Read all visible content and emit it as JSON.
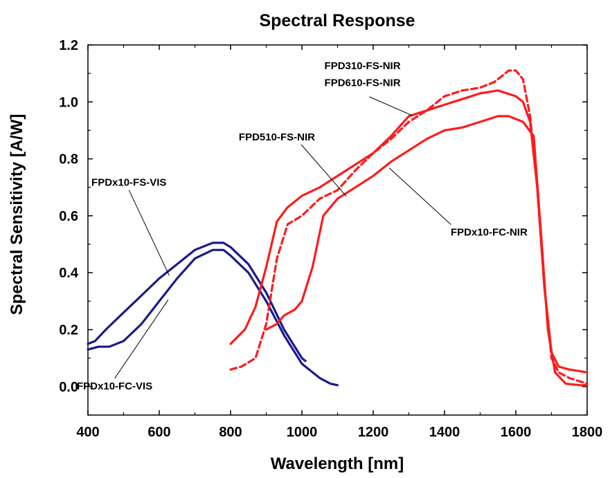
{
  "chart_data": {
    "type": "line",
    "title": "Spectral Response",
    "xlabel": "Wavelength [nm]",
    "ylabel": "Spectral Sensitivity [A/W]",
    "xlim": [
      400,
      1800
    ],
    "ylim": [
      -0.1,
      1.2
    ],
    "xticks": [
      400,
      600,
      800,
      1000,
      1200,
      1400,
      1600,
      1800
    ],
    "yticks": [
      0.0,
      0.2,
      0.4,
      0.6,
      0.8,
      1.0,
      1.2
    ],
    "xtick_labels": [
      "400",
      "600",
      "800",
      "1000",
      "1200",
      "1400",
      "1600",
      "1800"
    ],
    "ytick_labels": [
      "0.0",
      "0.2",
      "0.4",
      "0.6",
      "0.8",
      "1.0",
      "1.2"
    ],
    "grid": false,
    "colors": {
      "vis": "#1a1a8c",
      "nir": "#ff1a1a"
    },
    "series": [
      {
        "color": "vis",
        "dashed": false,
        "x": [
          400,
          430,
          460,
          500,
          550,
          600,
          650,
          700,
          750,
          780,
          800,
          850,
          900,
          950,
          1000,
          1050,
          1080,
          1100
        ],
        "y": [
          0.13,
          0.14,
          0.14,
          0.16,
          0.22,
          0.3,
          0.38,
          0.45,
          0.48,
          0.48,
          0.46,
          0.4,
          0.3,
          0.18,
          0.08,
          0.03,
          0.01,
          0.005
        ]
      },
      {
        "color": "vis",
        "dashed": false,
        "x": [
          400,
          420,
          450,
          500,
          550,
          600,
          650,
          700,
          750,
          780,
          800,
          850,
          900,
          950,
          1000,
          1010
        ],
        "y": [
          0.15,
          0.16,
          0.2,
          0.26,
          0.32,
          0.38,
          0.43,
          0.48,
          0.505,
          0.505,
          0.49,
          0.43,
          0.33,
          0.2,
          0.1,
          0.09
        ]
      },
      {
        "color": "nir",
        "dashed": false,
        "x": [
          800,
          840,
          870,
          900,
          930,
          960,
          1000,
          1050,
          1100,
          1150,
          1200,
          1250,
          1300,
          1350,
          1400,
          1450,
          1500,
          1550,
          1600,
          1620,
          1640,
          1660,
          1680,
          1700,
          1720,
          1750,
          1800
        ],
        "y": [
          0.15,
          0.2,
          0.28,
          0.42,
          0.58,
          0.63,
          0.67,
          0.7,
          0.74,
          0.78,
          0.82,
          0.88,
          0.95,
          0.97,
          0.99,
          1.01,
          1.03,
          1.04,
          1.02,
          1.0,
          0.93,
          0.7,
          0.35,
          0.12,
          0.07,
          0.06,
          0.05
        ]
      },
      {
        "color": "nir",
        "dashed": true,
        "x": [
          800,
          830,
          870,
          900,
          930,
          960,
          1000,
          1050,
          1100,
          1150,
          1200,
          1250,
          1300,
          1350,
          1400,
          1450,
          1500,
          1540,
          1560,
          1580,
          1600,
          1620,
          1640,
          1660,
          1680,
          1700,
          1720,
          1750,
          1800
        ],
        "y": [
          0.06,
          0.07,
          0.1,
          0.22,
          0.45,
          0.57,
          0.6,
          0.66,
          0.69,
          0.76,
          0.82,
          0.87,
          0.93,
          0.97,
          1.02,
          1.04,
          1.05,
          1.07,
          1.09,
          1.11,
          1.11,
          1.08,
          0.95,
          0.7,
          0.35,
          0.1,
          0.05,
          0.03,
          0.01
        ]
      },
      {
        "color": "nir",
        "dashed": false,
        "x": [
          900,
          930,
          950,
          980,
          1000,
          1030,
          1060,
          1100,
          1150,
          1200,
          1250,
          1300,
          1350,
          1400,
          1450,
          1500,
          1550,
          1580,
          1620,
          1650,
          1670,
          1690,
          1710,
          1740,
          1780,
          1800
        ],
        "y": [
          0.2,
          0.22,
          0.25,
          0.27,
          0.3,
          0.42,
          0.6,
          0.66,
          0.7,
          0.74,
          0.79,
          0.83,
          0.87,
          0.9,
          0.91,
          0.93,
          0.95,
          0.95,
          0.93,
          0.88,
          0.55,
          0.2,
          0.05,
          0.01,
          0.005,
          0.005
        ]
      }
    ],
    "annotations": [
      {
        "text": "FPD310-FS-NIR",
        "label_at": [
          1170,
          1.115
        ],
        "points_to": [
          1310,
          0.952
        ]
      },
      {
        "text": "FPD610-FS-NIR",
        "label_at": [
          1170,
          1.055
        ],
        "points_to": null
      },
      {
        "text": "FPD510-FS-NIR",
        "label_at": [
          930,
          0.865
        ],
        "points_to": [
          1125,
          0.668
        ]
      },
      {
        "text": "FPDx10-FS-VIS",
        "label_at": [
          515,
          0.705
        ],
        "points_to": [
          628,
          0.39
        ]
      },
      {
        "text": "FPDx10-FC-NIR",
        "label_at": [
          1525,
          0.53
        ],
        "points_to": [
          1245,
          0.768
        ]
      },
      {
        "text": "FPDx10-FC-VIS",
        "label_at": [
          475,
          -0.01
        ],
        "points_to": [
          625,
          0.305
        ]
      }
    ]
  }
}
